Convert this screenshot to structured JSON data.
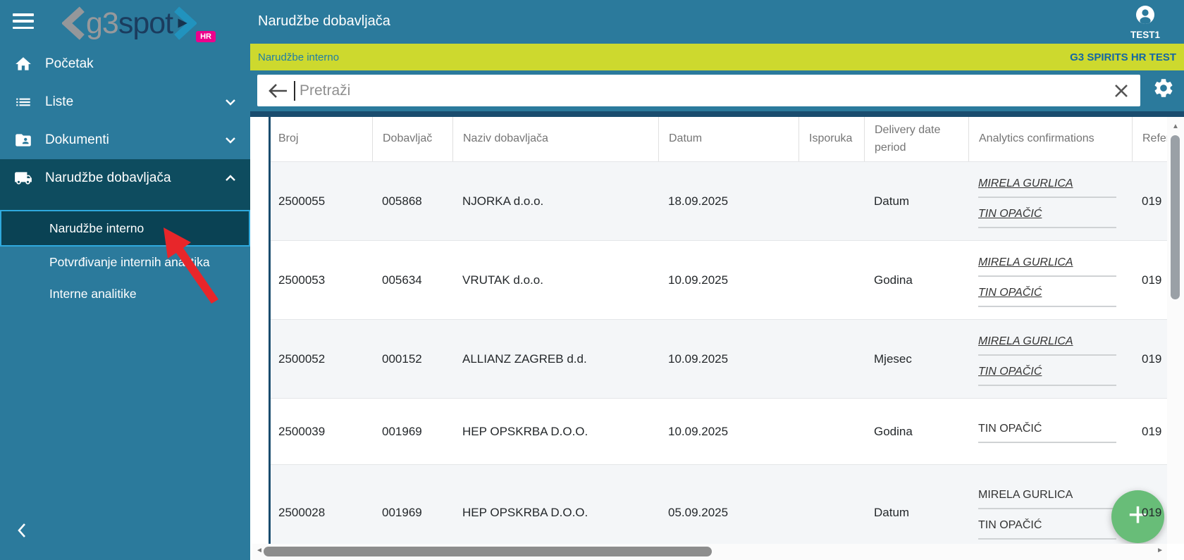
{
  "logo": {
    "g3": "g3",
    "spot": "spot",
    "badge": "HR"
  },
  "header": {
    "title": "Narudžbe dobavljača",
    "user": "TEST1"
  },
  "crumb": {
    "left": "Narudžbe interno",
    "right": "G3 SPIRITS HR TEST"
  },
  "search": {
    "placeholder": "Pretraži"
  },
  "sidebar": {
    "items": [
      {
        "label": "Početak",
        "icon": "home-icon"
      },
      {
        "label": "Liste",
        "icon": "list-icon",
        "chevron": "down"
      },
      {
        "label": "Dokumenti",
        "icon": "folder-shared-icon",
        "chevron": "down"
      },
      {
        "label": "Narudžbe dobavljača",
        "icon": "truck-icon",
        "chevron": "up",
        "active": true
      }
    ],
    "subitems": [
      {
        "label": "Narudžbe interno",
        "selected": true
      },
      {
        "label": "Potvrđivanje internih analitika"
      },
      {
        "label": "Interne analitike"
      }
    ]
  },
  "table": {
    "headers": [
      "Broj",
      "Dobavljač",
      "Naziv dobavljača",
      "Datum",
      "Isporuka",
      "Delivery date period",
      "Analytics confirmations",
      "Refer"
    ],
    "rows": [
      {
        "broj": "2500055",
        "dobavljac": "005868",
        "naziv": "NJORKA d.o.o.",
        "datum": "18.09.2025",
        "isporuka": "",
        "delivery": "Datum",
        "refer": "019",
        "confirmations": [
          {
            "name": "MIRELA GURLICA",
            "style": "link"
          },
          {
            "name": "TIN OPAČIĆ",
            "style": "link"
          }
        ]
      },
      {
        "broj": "2500053",
        "dobavljac": "005634",
        "naziv": "VRUTAK d.o.o.",
        "datum": "10.09.2025",
        "isporuka": "",
        "delivery": "Godina",
        "refer": "019",
        "confirmations": [
          {
            "name": "MIRELA GURLICA",
            "style": "link"
          },
          {
            "name": "TIN OPAČIĆ",
            "style": "link"
          }
        ]
      },
      {
        "broj": "2500052",
        "dobavljac": "000152",
        "naziv": "ALLIANZ ZAGREB d.d.",
        "datum": "10.09.2025",
        "isporuka": "",
        "delivery": "Mjesec",
        "refer": "019",
        "confirmations": [
          {
            "name": "MIRELA GURLICA",
            "style": "link"
          },
          {
            "name": "TIN OPAČIĆ",
            "style": "link"
          }
        ]
      },
      {
        "broj": "2500039",
        "dobavljac": "001969",
        "naziv": "HEP OPSKRBA D.O.O.",
        "datum": "10.09.2025",
        "isporuka": "",
        "delivery": "Godina",
        "refer": "019",
        "confirmations": [
          {
            "name": "TIN OPAČIĆ",
            "style": "plain"
          }
        ]
      },
      {
        "broj": "2500028",
        "dobavljac": "001969",
        "naziv": "HEP OPSKRBA D.O.O.",
        "datum": "05.09.2025",
        "isporuka": "",
        "delivery": "Datum",
        "refer": "019",
        "confirmations": [
          {
            "name": "MIRELA GURLICA",
            "style": "plain"
          },
          {
            "name": "TIN OPAČIĆ",
            "style": "plain"
          }
        ]
      }
    ]
  },
  "fab": {
    "label": "+"
  },
  "colors": {
    "teal": "#2b7a9c",
    "dark_section": "#0e4c5f",
    "selection_border": "#2fa9dd",
    "navy_accent": "#1a4c6e",
    "lime": "#cdd92e",
    "lime_text_left": "#1f7da6",
    "lime_text_right": "#1366a5",
    "fab_green": "#68bd78",
    "badge_pink": "#ec008c",
    "arrow_red": "#e8262a"
  }
}
